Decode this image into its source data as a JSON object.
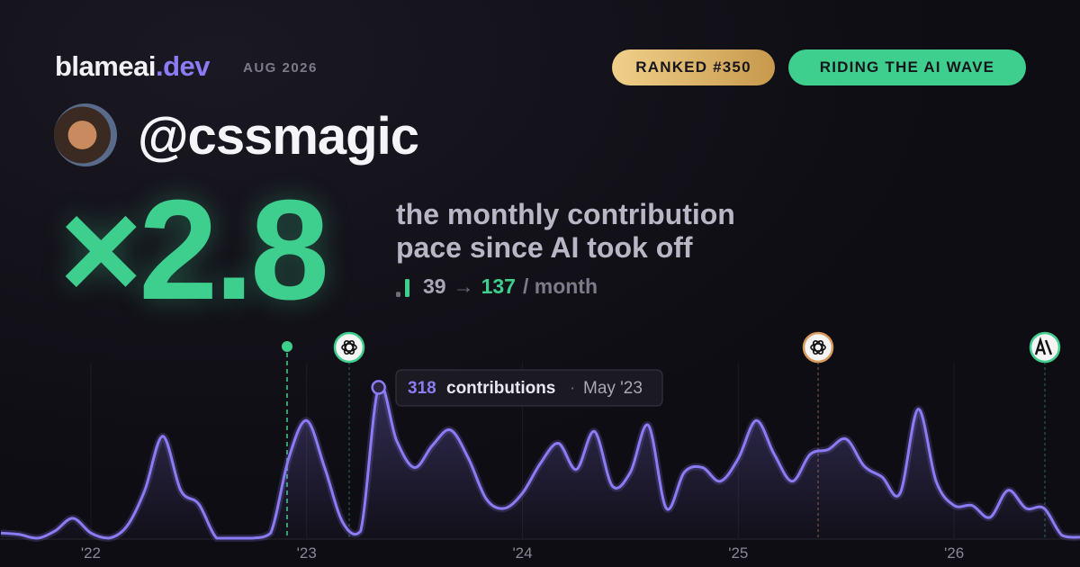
{
  "header": {
    "brand_name": "blameai",
    "brand_tld": ".dev",
    "date": "AUG 2026",
    "badges": [
      "RANKED #350",
      "RIDING THE AI WAVE"
    ]
  },
  "profile": {
    "handle": "@cssmagic"
  },
  "stat": {
    "multiplier": "×2.8",
    "description": [
      "the monthly contribution",
      "pace since AI took off"
    ],
    "before": 39,
    "arrow": "→",
    "after": 137,
    "unit": "/ month"
  },
  "chart_data": {
    "type": "line",
    "categories": [
      null,
      null,
      null,
      null,
      null,
      "'22",
      null,
      null,
      null,
      null,
      null,
      null,
      null,
      null,
      null,
      null,
      null,
      "'23",
      null,
      null,
      null,
      null,
      null,
      null,
      null,
      null,
      null,
      null,
      null,
      "'24",
      null,
      null,
      null,
      null,
      null,
      null,
      null,
      null,
      null,
      null,
      null,
      "'25",
      null,
      null,
      null,
      null,
      null,
      null,
      null,
      null,
      null,
      null,
      null,
      "'26",
      null,
      null,
      null,
      null,
      null,
      null,
      null
    ],
    "series": [
      {
        "name": "contributions",
        "color": "#8b7cf6",
        "values": [
          11,
          8,
          0,
          15,
          42,
          11,
          0,
          25,
          101,
          215,
          101,
          72,
          0,
          0,
          0,
          11,
          168,
          248,
          149,
          34,
          15,
          318,
          206,
          149,
          196,
          228,
          168,
          82,
          63,
          95,
          158,
          200,
          145,
          225,
          110,
          139,
          238,
          63,
          139,
          149,
          120,
          168,
          248,
          177,
          120,
          177,
          187,
          209,
          152,
          129,
          95,
          272,
          120,
          69,
          69,
          44,
          101,
          63,
          63,
          6,
          2
        ]
      }
    ],
    "ylim": [
      0,
      370
    ],
    "tooltip": {
      "date": "May '23"
    }
  }
}
